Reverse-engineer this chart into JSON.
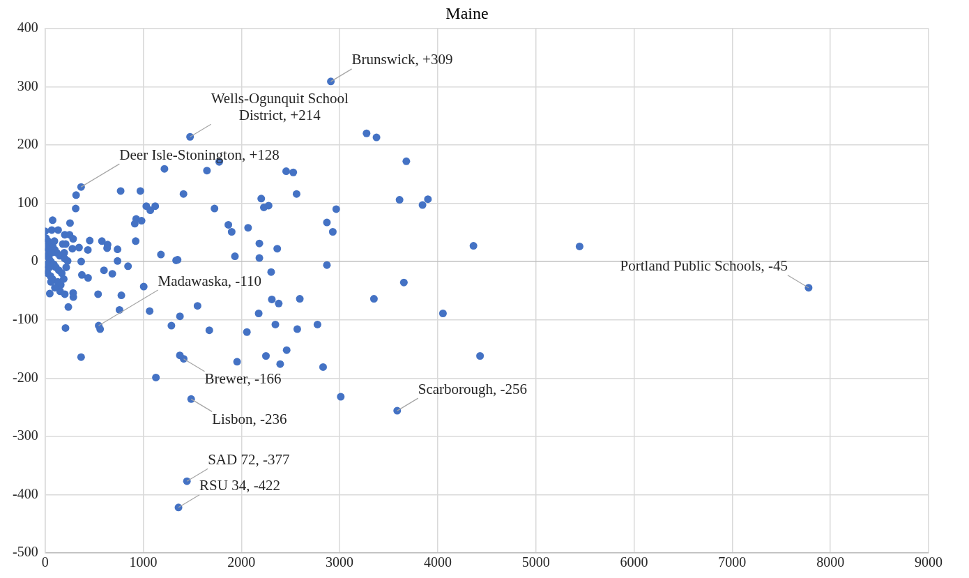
{
  "chart_data": {
    "type": "scatter",
    "title": "Maine",
    "color": "#4472c4",
    "marker": "circle",
    "grid": true,
    "xlim": [
      0,
      9000
    ],
    "xticks": [
      0,
      1000,
      2000,
      3000,
      4000,
      5000,
      6000,
      7000,
      8000,
      9000
    ],
    "ylim": [
      -500,
      400
    ],
    "yticks": [
      -500,
      -400,
      -300,
      -200,
      -100,
      0,
      100,
      200,
      300,
      400
    ],
    "x": [
      2911,
      1477,
      367,
      546,
      561,
      1412,
      1373,
      1488,
      3587,
      1445,
      1359,
      7778,
      3275,
      3376,
      3680,
      1216,
      1649,
      1774,
      2456,
      2528,
      971,
      770,
      1410,
      2562,
      3611,
      2202,
      1031,
      1122,
      1072,
      1726,
      2229,
      2277,
      2966,
      928,
      983,
      914,
      1867,
      1901,
      2068,
      2871,
      2931,
      923,
      1180,
      1335,
      1350,
      1934,
      2183,
      2183,
      2365,
      2871,
      2303,
      3655,
      1005,
      1065,
      1553,
      1374,
      2310,
      2380,
      2595,
      3350,
      2176,
      1287,
      1673,
      2056,
      2346,
      2569,
      2775,
      2250,
      2461,
      1956,
      2395,
      2832,
      1129,
      3012,
      3845,
      3900,
      4364,
      5445,
      4053,
      4431,
      312,
      316,
      77,
      254,
      0,
      68,
      133,
      201,
      249,
      286,
      455,
      579,
      637,
      632,
      738,
      278,
      346,
      436,
      368,
      230,
      738,
      845,
      600,
      685,
      375,
      438,
      48,
      153,
      201,
      286,
      288,
      540,
      777,
      237,
      758,
      208,
      367,
      10,
      30,
      50,
      80,
      100,
      120,
      150,
      20,
      40,
      60,
      90,
      110,
      140,
      170,
      25,
      55,
      75,
      130,
      160,
      190,
      15,
      35,
      65,
      95,
      180,
      200,
      215,
      100,
      60,
      5,
      5,
      45,
      195,
      210
    ],
    "values": [
      309,
      214,
      128,
      -110,
      -116,
      -167,
      -161,
      -236,
      -256,
      -377,
      -422,
      -45,
      220,
      213,
      172,
      159,
      156,
      171,
      155,
      153,
      121,
      121,
      116,
      116,
      106,
      108,
      95,
      95,
      88,
      91,
      93,
      96,
      90,
      73,
      70,
      65,
      63,
      51,
      58,
      67,
      51,
      35,
      12,
      2,
      3,
      9,
      31,
      6,
      22,
      -6,
      -18,
      -36,
      -43,
      -85,
      -76,
      -94,
      -65,
      -72,
      -64,
      -64,
      -89,
      -110,
      -118,
      -121,
      -108,
      -116,
      -108,
      -162,
      -152,
      -172,
      -176,
      -181,
      -199,
      -232,
      97,
      107,
      27,
      26,
      -89,
      -162,
      91,
      114,
      71,
      66,
      52,
      54,
      54,
      46,
      46,
      39,
      36,
      35,
      29,
      23,
      21,
      22,
      24,
      20,
      0,
      1,
      1,
      -8,
      -15,
      -21,
      -23,
      -28,
      -55,
      -51,
      -56,
      -54,
      -61,
      -56,
      -58,
      -78,
      -83,
      -114,
      -164,
      40,
      35,
      30,
      25,
      20,
      15,
      10,
      10,
      5,
      0,
      -5,
      -10,
      -15,
      -20,
      -20,
      -25,
      -30,
      -35,
      -40,
      -30,
      -5,
      20,
      15,
      35,
      30,
      5,
      -10,
      -45,
      -35,
      25,
      -15,
      -10,
      15,
      30
    ],
    "annotations": [
      {
        "text": "Brunswick, +309",
        "x": 2911,
        "y": 309
      },
      {
        "text": "Wells-Ogunquit School District, +214",
        "x": 1477,
        "y": 214
      },
      {
        "text": "Deer Isle-Stonington, +128",
        "x": 367,
        "y": 128
      },
      {
        "text": "Madawaska, -110",
        "x": 546,
        "y": -110
      },
      {
        "text": "Brewer, -166",
        "x": 1412,
        "y": -167
      },
      {
        "text": "Lisbon, -236",
        "x": 1488,
        "y": -236
      },
      {
        "text": "Scarborough, -256",
        "x": 3587,
        "y": -256
      },
      {
        "text": "SAD 72, -377",
        "x": 1445,
        "y": -377
      },
      {
        "text": "RSU 34, -422",
        "x": 1359,
        "y": -422
      },
      {
        "text": "Portland Public Schools, -45",
        "x": 7778,
        "y": -45
      }
    ]
  }
}
